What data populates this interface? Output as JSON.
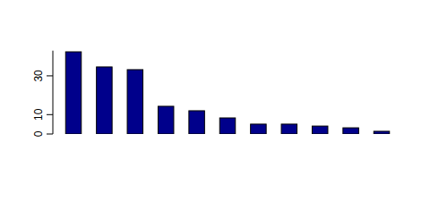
{
  "chart_data": {
    "type": "bar",
    "categories": [
      null,
      null,
      null,
      null,
      null,
      null,
      null,
      null,
      null,
      null,
      null
    ],
    "values": [
      42.4,
      34.6,
      33.2,
      14.3,
      12,
      8.3,
      5.1,
      5.1,
      4.1,
      3.2,
      1.4
    ],
    "color": "#00008b",
    "ylim": [
      0,
      43
    ],
    "yticks": [
      0,
      10,
      30
    ],
    "grid": false
  }
}
